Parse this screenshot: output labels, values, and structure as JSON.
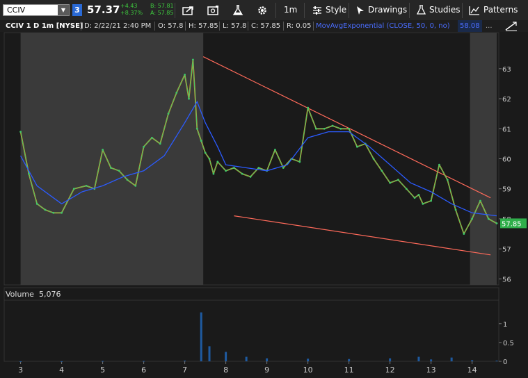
{
  "toolbar": {
    "symbol": "CCIV",
    "link_badge": "3",
    "last_price": "57.37",
    "net_change": "+4.43",
    "pct_change": "+8.37%",
    "bid": "B: 57.81",
    "ask": "A: 57.85",
    "timeframe_label": "1m",
    "style_label": "Style",
    "drawings_label": "Drawings",
    "studies_label": "Studies",
    "patterns_label": "Patterns"
  },
  "infobar": {
    "title": "CCIV 1 D 1m [NYSE]",
    "date": "D: 2/22/21 2:40 PM",
    "open": "O: 57.8",
    "high": "H: 57.85",
    "low": "L: 57.8",
    "close": "C: 57.85",
    "range": "R: 0.05",
    "study": "MovAvgExponential (CLOSE, 50, 0, no)",
    "study_value": "58.08",
    "more": "..."
  },
  "volume_panel": {
    "label": "Volume",
    "value": "5,076"
  },
  "colors": {
    "background": "#1a1a1a",
    "shade": "#3a3a3a",
    "up": "#3fc86a",
    "down": "#ff8c1a",
    "ema": "#2b5bff",
    "trendline": "#ff6a5a",
    "volume": "#1e5aa0",
    "price_tag": "#2fae4a"
  },
  "chart_data": {
    "type": "line",
    "series": [
      {
        "name": "CCIV",
        "x": [
          3,
          3.2,
          3.4,
          3.6,
          3.8,
          4,
          4.3,
          4.6,
          4.8,
          5,
          5.2,
          5.4,
          5.6,
          5.8,
          6,
          6.2,
          6.4,
          6.6,
          6.8,
          7,
          7.1,
          7.2,
          7.3,
          7.4,
          7.5,
          7.6,
          7.7,
          7.8,
          8,
          8.2,
          8.4,
          8.6,
          8.8,
          9,
          9.2,
          9.4,
          9.6,
          9.8,
          10,
          10.2,
          10.4,
          10.6,
          10.8,
          11,
          11.2,
          11.4,
          11.6,
          11.8,
          12,
          12.2,
          12.4,
          12.6,
          12.7,
          12.8,
          13,
          13.2,
          13.4,
          13.6,
          13.8,
          14,
          14.2,
          14.4,
          14.6
        ],
        "values": [
          60.9,
          59.5,
          58.5,
          58.3,
          58.2,
          58.2,
          59.0,
          59.1,
          59.0,
          60.3,
          59.7,
          59.6,
          59.3,
          59.1,
          60.4,
          60.7,
          60.5,
          61.5,
          62.2,
          62.8,
          62.0,
          63.3,
          61.0,
          60.6,
          60.2,
          60.0,
          59.5,
          59.9,
          59.6,
          59.7,
          59.5,
          59.4,
          59.7,
          59.6,
          60.3,
          59.7,
          60.0,
          59.9,
          61.7,
          61.0,
          61.0,
          61.1,
          61.0,
          61.0,
          60.4,
          60.5,
          60.0,
          59.6,
          59.2,
          59.3,
          59.0,
          58.7,
          58.8,
          58.5,
          58.6,
          59.8,
          59.3,
          58.3,
          57.5,
          58.0,
          58.6,
          58.0,
          57.85
        ]
      },
      {
        "name": "MovAvgExponential (CLOSE, 50, 0, no)",
        "x": [
          3,
          3.4,
          3.8,
          4,
          4.5,
          5,
          5.5,
          6,
          6.5,
          7,
          7.3,
          7.5,
          7.8,
          8,
          8.5,
          9,
          9.5,
          10,
          10.5,
          11,
          11.5,
          12,
          12.5,
          13,
          13.5,
          14,
          14.6
        ],
        "values": [
          60.1,
          59.1,
          58.7,
          58.5,
          58.9,
          59.1,
          59.4,
          59.6,
          60.1,
          61.2,
          61.9,
          61.2,
          60.4,
          59.8,
          59.7,
          59.6,
          59.8,
          60.7,
          60.9,
          60.9,
          60.4,
          59.8,
          59.2,
          58.9,
          58.5,
          58.2,
          58.1
        ]
      }
    ],
    "volume": {
      "name": "Volume",
      "x": [
        3,
        4,
        5,
        6,
        7,
        7.4,
        7.6,
        8,
        8.5,
        9,
        10,
        11,
        12,
        12.7,
        13,
        13.5,
        14,
        14.6
      ],
      "values": [
        0.001,
        0.002,
        0.01,
        0.01,
        0.02,
        1.3,
        0.4,
        0.25,
        0.12,
        0.08,
        0.07,
        0.06,
        0.08,
        0.12,
        0.05,
        0.1,
        0.03,
        0.02
      ]
    },
    "trendlines": [
      {
        "x": [
          7.45,
          14.45
        ],
        "y": [
          63.4,
          58.7
        ]
      },
      {
        "x": [
          8.2,
          14.45
        ],
        "y": [
          58.1,
          56.8
        ]
      }
    ],
    "shaded_x_ranges": [
      [
        3,
        7.45
      ],
      [
        13.95,
        14.6
      ]
    ],
    "x_ticks": [
      "3",
      "4",
      "5",
      "6",
      "7",
      "8",
      "9",
      "10",
      "11",
      "12",
      "13",
      "14"
    ],
    "y_ticks": [
      "56",
      "57",
      "58",
      "59",
      "60",
      "61",
      "62",
      "63"
    ],
    "volume_ticks": [
      "0",
      "0.5",
      "1"
    ],
    "price_tag": "57.85",
    "xlim": [
      2.6,
      14.65
    ],
    "ylim": [
      55.8,
      64.2
    ],
    "volume_ylim": [
      0,
      1.55
    ],
    "grid": false
  }
}
